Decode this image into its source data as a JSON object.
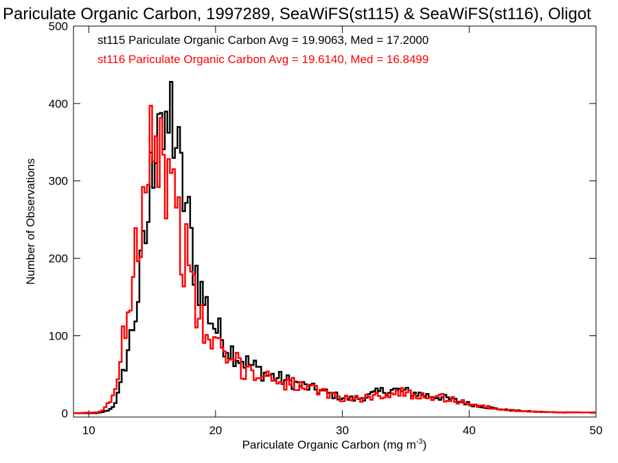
{
  "chart_data": {
    "type": "histogram-step",
    "title": "Pariculate Organic Carbon, 1997289, SeaWiFS(st115) & SeaWiFS(st116), Oligot",
    "xlabel": "Pariculate Organic Carbon (mg m",
    "xlabel_sup": "-3",
    "xlabel_close": ")",
    "ylabel": "Number of Observations",
    "xlim": [
      8.8,
      50
    ],
    "ylim": [
      -5,
      500
    ],
    "xticks": [
      10,
      20,
      30,
      40,
      50
    ],
    "yticks": [
      0,
      100,
      200,
      300,
      400,
      500
    ],
    "bin_width": 0.2,
    "grid": false,
    "legend_placement": "top-left",
    "series": [
      {
        "name": "st115",
        "color": "#000000",
        "legend": "st115 Pariculate Organic Carbon Avg = 19.9063, Med = 17.2000",
        "points": [
          [
            8.8,
            0
          ],
          [
            10.6,
            0
          ],
          [
            11.0,
            1
          ],
          [
            11.4,
            3
          ],
          [
            11.8,
            6
          ],
          [
            12.2,
            18
          ],
          [
            12.6,
            40
          ],
          [
            13.0,
            75
          ],
          [
            13.4,
            105
          ],
          [
            13.8,
            140
          ],
          [
            14.2,
            190
          ],
          [
            14.6,
            240
          ],
          [
            14.8,
            270
          ],
          [
            15.0,
            320
          ],
          [
            15.2,
            360
          ],
          [
            15.4,
            400
          ],
          [
            15.6,
            440
          ],
          [
            15.8,
            380
          ],
          [
            16.0,
            300
          ],
          [
            16.4,
            390
          ],
          [
            16.8,
            370
          ],
          [
            17.2,
            300
          ],
          [
            17.6,
            280
          ],
          [
            18.0,
            230
          ],
          [
            18.4,
            190
          ],
          [
            19.0,
            150
          ],
          [
            20.0,
            110
          ],
          [
            21.0,
            85
          ],
          [
            22.0,
            70
          ],
          [
            23.0,
            60
          ],
          [
            24.0,
            50
          ],
          [
            25.0,
            45
          ],
          [
            26.0,
            40
          ],
          [
            27.0,
            35
          ],
          [
            28.0,
            30
          ],
          [
            29.0,
            25
          ],
          [
            30.0,
            20
          ],
          [
            31.0,
            18
          ],
          [
            32.0,
            22
          ],
          [
            33.0,
            28
          ],
          [
            34.0,
            30
          ],
          [
            35.0,
            28
          ],
          [
            36.0,
            25
          ],
          [
            37.0,
            22
          ],
          [
            38.0,
            20
          ],
          [
            39.0,
            16
          ],
          [
            40.0,
            12
          ],
          [
            41.0,
            9
          ],
          [
            42.0,
            6
          ],
          [
            43.0,
            4
          ],
          [
            44.0,
            3
          ],
          [
            45.0,
            2
          ],
          [
            47.0,
            1
          ],
          [
            50.0,
            1
          ]
        ],
        "noise": 0.22
      },
      {
        "name": "st116",
        "color": "#ff0000",
        "legend": "st116 Pariculate Organic Carbon Avg = 19.6140, Med = 16.8499",
        "points": [
          [
            8.8,
            0
          ],
          [
            10.6,
            1
          ],
          [
            11.0,
            3
          ],
          [
            11.4,
            8
          ],
          [
            11.8,
            18
          ],
          [
            12.2,
            40
          ],
          [
            12.6,
            80
          ],
          [
            13.0,
            130
          ],
          [
            13.4,
            175
          ],
          [
            13.8,
            230
          ],
          [
            14.2,
            280
          ],
          [
            14.6,
            340
          ],
          [
            15.0,
            380
          ],
          [
            15.4,
            360
          ],
          [
            15.8,
            330
          ],
          [
            16.2,
            300
          ],
          [
            16.8,
            270
          ],
          [
            17.2,
            240
          ],
          [
            17.6,
            210
          ],
          [
            18.0,
            170
          ],
          [
            18.4,
            140
          ],
          [
            19.0,
            110
          ],
          [
            20.0,
            85
          ],
          [
            21.0,
            70
          ],
          [
            22.0,
            60
          ],
          [
            23.0,
            52
          ],
          [
            24.0,
            48
          ],
          [
            25.0,
            43
          ],
          [
            26.0,
            38
          ],
          [
            27.0,
            33
          ],
          [
            28.0,
            28
          ],
          [
            29.0,
            24
          ],
          [
            30.0,
            20
          ],
          [
            31.0,
            18
          ],
          [
            32.0,
            20
          ],
          [
            33.0,
            24
          ],
          [
            34.0,
            26
          ],
          [
            35.0,
            26
          ],
          [
            36.0,
            24
          ],
          [
            37.0,
            22
          ],
          [
            38.0,
            20
          ],
          [
            39.0,
            16
          ],
          [
            40.0,
            12
          ],
          [
            41.0,
            9
          ],
          [
            42.0,
            6
          ],
          [
            43.0,
            4
          ],
          [
            44.0,
            3
          ],
          [
            45.0,
            2
          ],
          [
            47.0,
            1
          ],
          [
            50.0,
            1
          ]
        ],
        "noise": 0.25
      }
    ]
  }
}
